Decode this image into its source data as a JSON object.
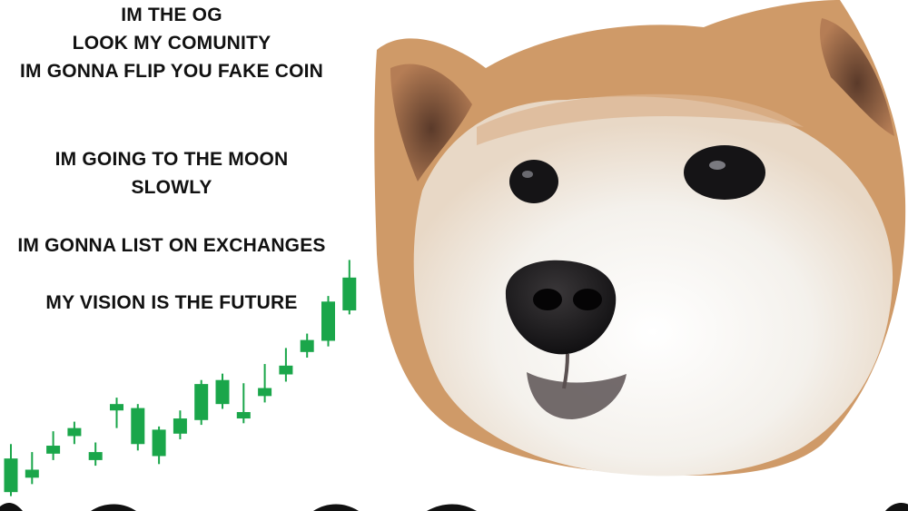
{
  "captions": {
    "line1": "IM THE OG",
    "line2": "LOOK MY COMUNITY",
    "line3": "IM GONNA FLIP YOU FAKE COIN",
    "line4": "IM GOING TO THE MOON",
    "line5": "SLOWLY",
    "line6": "IM GONNA LIST ON EXCHANGES",
    "line7": "MY VISION IS THE FUTURE"
  },
  "chart_data": {
    "type": "candlestick",
    "trend": "up",
    "color": "#1aa64a",
    "candles": [
      {
        "o": 10,
        "c": 52,
        "h": 70,
        "l": 5
      },
      {
        "o": 28,
        "c": 38,
        "h": 60,
        "l": 20
      },
      {
        "o": 58,
        "c": 68,
        "h": 86,
        "l": 50
      },
      {
        "o": 80,
        "c": 90,
        "h": 98,
        "l": 70
      },
      {
        "o": 60,
        "c": 50,
        "h": 72,
        "l": 43
      },
      {
        "o": 120,
        "c": 112,
        "h": 128,
        "l": 90
      },
      {
        "o": 115,
        "c": 70,
        "h": 120,
        "l": 62
      },
      {
        "o": 88,
        "c": 55,
        "h": 92,
        "l": 45
      },
      {
        "o": 83,
        "c": 102,
        "h": 112,
        "l": 76
      },
      {
        "o": 100,
        "c": 145,
        "h": 150,
        "l": 94
      },
      {
        "o": 150,
        "c": 120,
        "h": 158,
        "l": 114
      },
      {
        "o": 110,
        "c": 102,
        "h": 146,
        "l": 96
      },
      {
        "o": 130,
        "c": 140,
        "h": 170,
        "l": 122
      },
      {
        "o": 157,
        "c": 168,
        "h": 190,
        "l": 148
      },
      {
        "o": 185,
        "c": 200,
        "h": 208,
        "l": 178
      },
      {
        "o": 199,
        "c": 248,
        "h": 255,
        "l": 192
      },
      {
        "o": 237,
        "c": 278,
        "h": 300,
        "l": 232
      }
    ],
    "ylim": [
      0,
      305
    ]
  },
  "colors": {
    "fur_orange": "#cf9a68",
    "fur_white": "#f4f1ec",
    "nose": "#1b1a1c",
    "text": "#111111"
  }
}
